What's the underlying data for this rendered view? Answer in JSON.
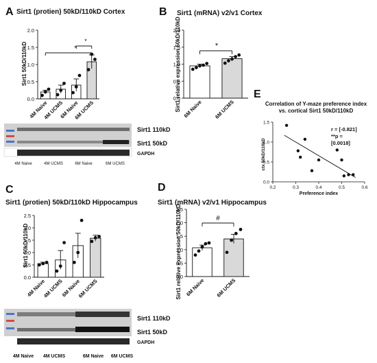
{
  "panels": {
    "A": {
      "letter": "A",
      "title": "Sirt1 (protien) 50kD/110kD Cortex",
      "ylabel": "Sirt1 50kD/110kD",
      "blot_labels": [
        "Sirt1 110kD",
        "Sirt1 50kD",
        "GAPDH"
      ],
      "lane_groups": [
        "4M Naive",
        "4M UCMS",
        "6M Naive",
        "6M UCMS"
      ],
      "sig": [
        "*",
        "*"
      ]
    },
    "B": {
      "letter": "B",
      "title": "Sirt1 (mRNA) v2/v1 Cortex",
      "ylabel": "Sirt1 relative expression 50kD/110kD",
      "sig": [
        "*"
      ]
    },
    "C": {
      "letter": "C",
      "title": "Sirt1 (protien) 50kD/110kD Hippocampus",
      "ylabel": "Sirt1 50kD/110kD",
      "blot_labels": [
        "Sirt1 110kD",
        "Sirt1 50kD",
        "GAPDH"
      ],
      "lane_groups": [
        "4M Naive",
        "4M UCMS",
        "6M Naive",
        "6M UCMS"
      ]
    },
    "D": {
      "letter": "D",
      "title": "Sirt1 (mRNA) v2/v1 Hippocampus",
      "ylabel": "Sirt1 relative expression 50kD/110kD",
      "sig": [
        "#"
      ]
    },
    "E": {
      "letter": "E",
      "title_line1": "Correlation of Y-maze preference index",
      "title_line2": "vs. cortical Sirt1 50kD/110kD",
      "stat_line1": "r = [-0.821]",
      "stat_line2": "**p =",
      "stat_line3": "[0.0018]"
    }
  },
  "colors": {
    "bar_white": "#ffffff",
    "bar_grey": "#d9d9d9",
    "ink": "#111111"
  },
  "chart_data": [
    {
      "panel": "A",
      "type": "bar",
      "categories": [
        "4M Naive",
        "4M UCMS",
        "6M Naive",
        "6M UCMS"
      ],
      "values": [
        0.2,
        0.28,
        0.4,
        1.08
      ],
      "errors": [
        0.05,
        0.12,
        0.18,
        0.2
      ],
      "points": [
        [
          0.1,
          0.2,
          0.28
        ],
        [
          0.12,
          0.25,
          0.45
        ],
        [
          0.18,
          0.35,
          0.68
        ],
        [
          0.85,
          1.3,
          1.15
        ]
      ],
      "bar_fill": [
        "white",
        "white",
        "white",
        "grey"
      ],
      "xlabel": "",
      "ylabel": "Sirt1 50kD/110kD",
      "ylim": [
        0,
        2.0
      ],
      "yticks": [
        0.0,
        0.5,
        1.0,
        1.5,
        2.0
      ],
      "ytick_labels": [
        "0.0",
        "0.5",
        "1.0",
        "1.5",
        "2.0"
      ],
      "title": "Sirt1 (protien) 50kD/110kD Cortex"
    },
    {
      "panel": "B",
      "type": "bar",
      "categories": [
        "6M Naive",
        "6M UCMS"
      ],
      "values": [
        0.95,
        1.16
      ],
      "errors": [
        0.05,
        0.06
      ],
      "points": [
        [
          0.85,
          0.9,
          0.95,
          0.97,
          1.02
        ],
        [
          1.03,
          1.1,
          1.15,
          1.22,
          1.27
        ]
      ],
      "bar_fill": [
        "white",
        "grey"
      ],
      "xlabel": "",
      "ylabel": "Sirt1 relative expression 50kD/110kD",
      "ylim": [
        0,
        2.0
      ],
      "yticks": [
        0.0,
        0.5,
        1.0,
        1.5,
        2.0
      ],
      "ytick_labels": [
        "0.0",
        "0.5",
        "1.0",
        "1.5",
        "2.0"
      ],
      "title": "Sirt1 (mRNA) v2/v1 Cortex"
    },
    {
      "panel": "C",
      "type": "bar",
      "categories": [
        "4M Naive",
        "4M UCMS",
        "6M Naive",
        "6M UCMS"
      ],
      "values": [
        0.55,
        0.7,
        1.28,
        1.58
      ],
      "errors": [
        0.06,
        0.38,
        0.5,
        0.12
      ],
      "points": [
        [
          0.5,
          0.55,
          0.6
        ],
        [
          0.25,
          0.45,
          1.4
        ],
        [
          0.6,
          1.0,
          2.3
        ],
        [
          1.45,
          1.6,
          1.65
        ]
      ],
      "bar_fill": [
        "white",
        "white",
        "white",
        "grey"
      ],
      "xlabel": "",
      "ylabel": "Sirt1 50kD/110kD",
      "ylim": [
        0,
        2.5
      ],
      "yticks": [
        0.0,
        0.5,
        1.0,
        1.5,
        2.0,
        2.5
      ],
      "ytick_labels": [
        "0.0",
        "0.5",
        "1.0",
        "1.5",
        "2.0",
        "2.5"
      ],
      "title": "Sirt1 (protien) 50kD/110kD Hippocampus"
    },
    {
      "panel": "D",
      "type": "bar",
      "categories": [
        "6M Naive",
        "6M UCMS"
      ],
      "values": [
        1.07,
        1.4
      ],
      "errors": [
        0.1,
        0.17
      ],
      "points": [
        [
          0.8,
          0.95,
          1.1,
          1.22,
          1.25
        ],
        [
          0.9,
          1.35,
          1.6,
          1.75
        ]
      ],
      "bar_fill": [
        "white",
        "grey"
      ],
      "xlabel": "",
      "ylabel": "Sirt1 relative expression 50kD/110kD",
      "ylim": [
        0,
        2.5
      ],
      "yticks": [
        0.0,
        0.5,
        1.0,
        1.5,
        2.0,
        2.5
      ],
      "ytick_labels": [
        "0.0",
        "0.5",
        "1.0",
        "1.5",
        "2.0",
        "2.5"
      ],
      "title": "Sirt1 (mRNA) v2/v1 Hippocampus"
    },
    {
      "panel": "E",
      "type": "scatter",
      "x": [
        0.26,
        0.31,
        0.32,
        0.34,
        0.37,
        0.4,
        0.48,
        0.5,
        0.51,
        0.53,
        0.55
      ],
      "y": [
        1.42,
        0.78,
        0.62,
        1.07,
        0.28,
        0.55,
        0.8,
        0.55,
        0.15,
        0.18,
        0.18
      ],
      "trendline": {
        "x": [
          0.25,
          0.56
        ],
        "y": [
          1.17,
          0.11
        ]
      },
      "xlabel": "Preference index",
      "ylabel": "ctx 50kD/110kD",
      "xlim": [
        0.2,
        0.6
      ],
      "ylim": [
        0.0,
        1.5
      ],
      "xticks": [
        0.2,
        0.3,
        0.4,
        0.5,
        0.6
      ],
      "xtick_labels": [
        "0.2",
        "0.3",
        "0.4",
        "0.5",
        "0.6"
      ],
      "yticks": [
        0.0,
        0.5,
        1.0,
        1.5
      ],
      "ytick_labels": [
        "0.0",
        "0.5",
        "1.0",
        "1.5"
      ],
      "title": "Correlation of Y-maze preference index vs. cortical Sirt1 50kD/110kD"
    }
  ]
}
